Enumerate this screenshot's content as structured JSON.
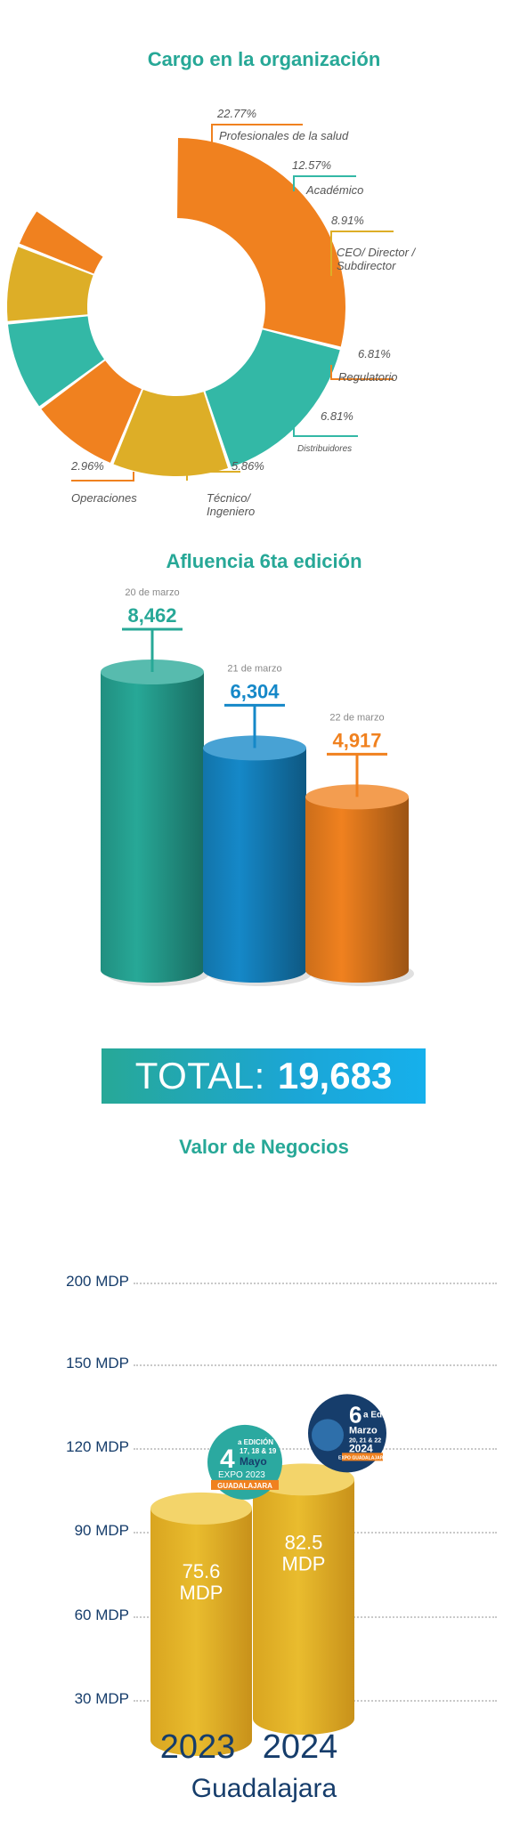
{
  "colors": {
    "teal": "#27A897",
    "orange": "#F0811F",
    "yellow": "#DDAE27",
    "blue": "#1588C8",
    "navy": "#163D6B"
  },
  "cargo": {
    "title": "Cargo en la organización"
  },
  "afluencia": {
    "title": "Afluencia 6ta edición",
    "total_label": "TOTAL:",
    "total_value": "19,683"
  },
  "negocios": {
    "title": "Valor de Negocios",
    "city": "Guadalajara",
    "badge_2023": {
      "big": "4",
      "line1": "a EDICIÓN",
      "line2": "17, 18 & 19",
      "line3": "Mayo",
      "line4": "EXPO 2023",
      "line5": "GUADALAJARA"
    },
    "badge_2024": {
      "big": "6",
      "line1": "a Ed.",
      "line2": "Marzo",
      "line3": "20, 21 & 22",
      "line4": "2024",
      "line5": "EXPO GUADALAJARA"
    }
  },
  "chart_data": [
    {
      "type": "pie",
      "title": "Cargo en la organización",
      "categories": [
        "Profesionales de la salud",
        "Académico",
        "CEO/ Director / Subdirector",
        "Regulatorio",
        "Distribuidores",
        "Técnico/ Ingeniero",
        "Operaciones"
      ],
      "values": [
        22.77,
        12.57,
        8.91,
        6.81,
        6.81,
        5.86,
        2.96
      ],
      "value_labels": [
        "22.77%",
        "12.57%",
        "8.91%",
        "6.81%",
        "6.81%",
        "5.86%",
        "2.96%"
      ],
      "colors": [
        "#F0811F",
        "#33B8A6",
        "#DDAE27",
        "#F0811F",
        "#33B8A6",
        "#DDAE27",
        "#F0811F"
      ]
    },
    {
      "type": "bar",
      "title": "Afluencia 6ta edición",
      "categories": [
        "20 de marzo",
        "21 de marzo",
        "22 de marzo"
      ],
      "values": [
        8462,
        6304,
        4917
      ],
      "value_labels": [
        "8,462",
        "6,304",
        "4,917"
      ],
      "colors": [
        "#27A897",
        "#1588C8",
        "#F0811F"
      ]
    },
    {
      "type": "bar",
      "title": "Valor de Negocios",
      "categories": [
        "2023",
        "2024"
      ],
      "values": [
        75.6,
        82.5
      ],
      "value_labels": [
        "75.6 MDP",
        "82.5 MDP"
      ],
      "y_ticks": [
        "30 MDP",
        "60 MDP",
        "90 MDP",
        "120 MDP",
        "150 MDP",
        "200 MDP"
      ],
      "grid": true
    }
  ]
}
